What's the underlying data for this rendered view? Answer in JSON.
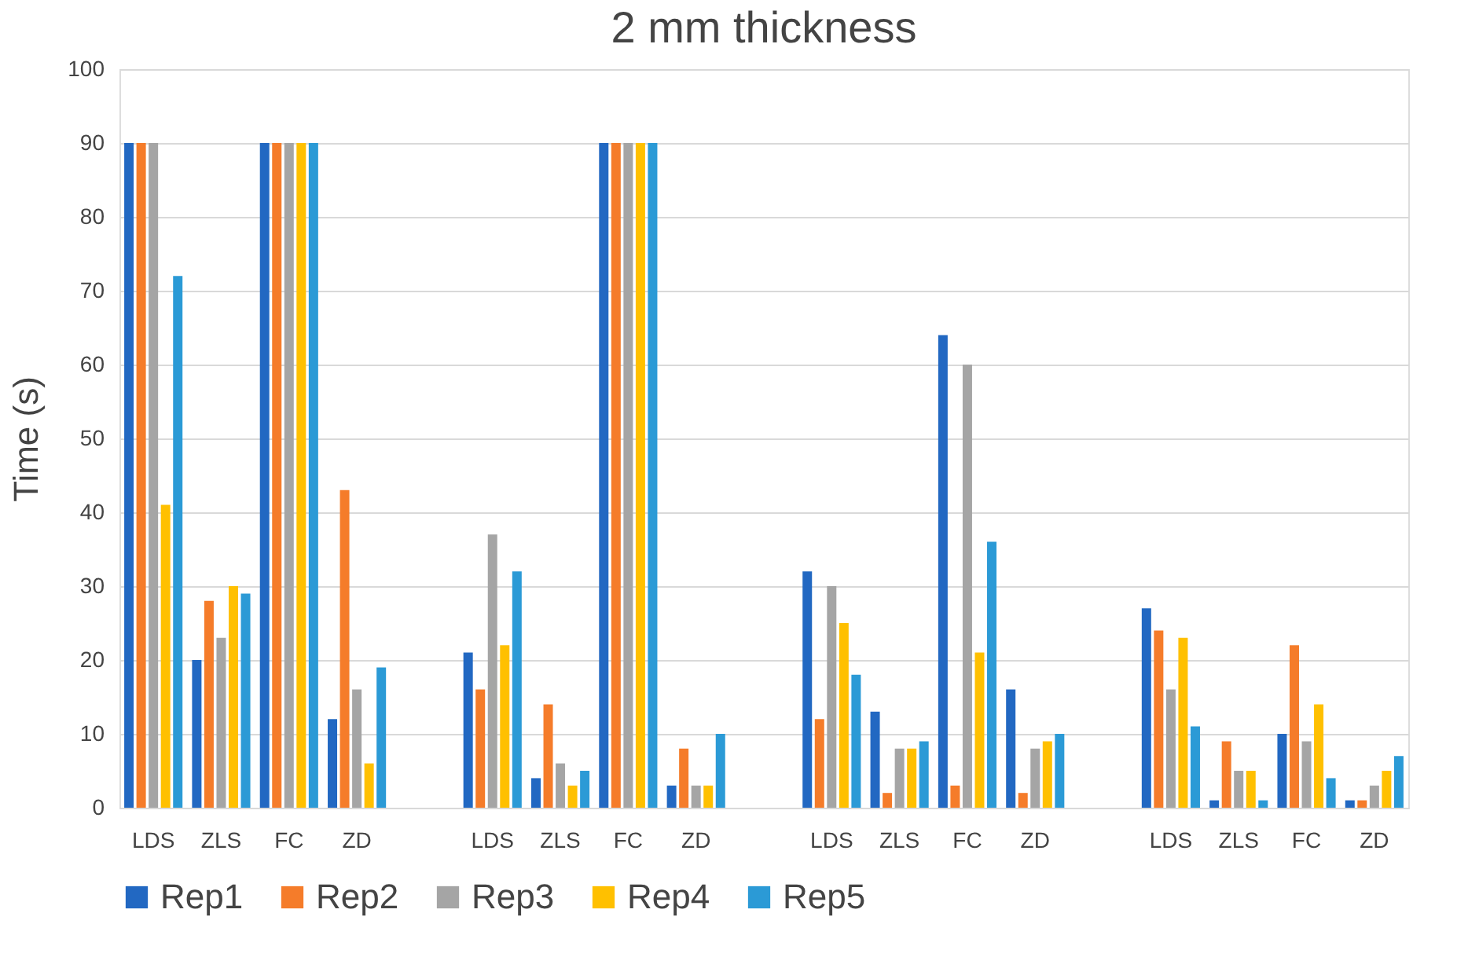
{
  "chart_data": {
    "type": "bar",
    "title": "2 mm thickness",
    "ylabel": "Time (s)",
    "categories": [
      "LDS",
      "ZLS",
      "FC",
      "ZD",
      null,
      "LDS",
      "ZLS",
      "FC",
      "ZD",
      null,
      "LDS",
      "ZLS",
      "FC",
      "ZD",
      null,
      "LDS",
      "ZLS",
      "FC",
      "ZD"
    ],
    "series": [
      {
        "name": "Rep1",
        "color": "#2268c2",
        "values": [
          90,
          20,
          90,
          12,
          null,
          21,
          4,
          90,
          3,
          null,
          32,
          13,
          64,
          16,
          null,
          27,
          1,
          10,
          1
        ]
      },
      {
        "name": "Rep2",
        "color": "#f57c2a",
        "values": [
          90,
          28,
          90,
          43,
          null,
          16,
          14,
          90,
          8,
          null,
          12,
          2,
          3,
          2,
          null,
          24,
          9,
          22,
          1
        ]
      },
      {
        "name": "Rep3",
        "color": "#a5a5a5",
        "values": [
          90,
          23,
          90,
          16,
          null,
          37,
          6,
          90,
          3,
          null,
          30,
          8,
          60,
          8,
          null,
          16,
          5,
          9,
          3
        ]
      },
      {
        "name": "Rep4",
        "color": "#ffc000",
        "values": [
          41,
          30,
          90,
          6,
          null,
          22,
          3,
          90,
          3,
          null,
          25,
          8,
          21,
          9,
          null,
          23,
          5,
          14,
          5
        ]
      },
      {
        "name": "Rep5",
        "color": "#2b9ad6",
        "values": [
          72,
          29,
          90,
          19,
          null,
          32,
          5,
          90,
          10,
          null,
          18,
          9,
          36,
          10,
          null,
          11,
          1,
          4,
          7
        ]
      }
    ],
    "ylim": [
      0,
      100
    ],
    "yticks": [
      0,
      10,
      20,
      30,
      40,
      50,
      60,
      70,
      80,
      90,
      100
    ],
    "grid": "y",
    "legend": "bottom"
  }
}
